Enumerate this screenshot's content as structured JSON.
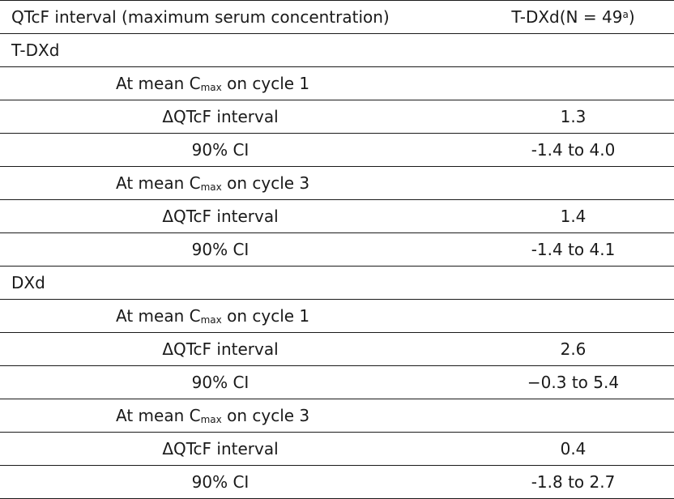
{
  "header": {
    "col1": "QTcF interval (maximum serum concentration)",
    "col2_prefix": "T-DXd(N = 49",
    "col2_sup": "a",
    "col2_suffix": ")"
  },
  "groups": [
    {
      "label": "T-DXd",
      "subgroups": [
        {
          "label_prefix": "At mean C",
          "label_sub": "max",
          "label_suffix": " on cycle 1",
          "rows": [
            {
              "label": "ΔQTcF interval",
              "value": "1.3"
            },
            {
              "label": "90% CI",
              "value": "-1.4 to 4.0"
            }
          ]
        },
        {
          "label_prefix": "At mean C",
          "label_sub": "max",
          "label_suffix": " on cycle 3",
          "rows": [
            {
              "label": "ΔQTcF interval",
              "value": "1.4"
            },
            {
              "label": "90% CI",
              "value": "-1.4 to 4.1"
            }
          ]
        }
      ]
    },
    {
      "label": "DXd",
      "subgroups": [
        {
          "label_prefix": "At mean C",
          "label_sub": "max",
          "label_suffix": " on cycle 1",
          "rows": [
            {
              "label": "ΔQTcF interval",
              "value": "2.6"
            },
            {
              "label": "90% CI",
              "value": "−0.3 to 5.4"
            }
          ]
        },
        {
          "label_prefix": "At mean C",
          "label_sub": "max",
          "label_suffix": " on cycle 3",
          "rows": [
            {
              "label": "ΔQTcF interval",
              "value": "0.4"
            },
            {
              "label": "90% CI",
              "value": "-1.8 to 2.7"
            }
          ]
        }
      ]
    }
  ]
}
